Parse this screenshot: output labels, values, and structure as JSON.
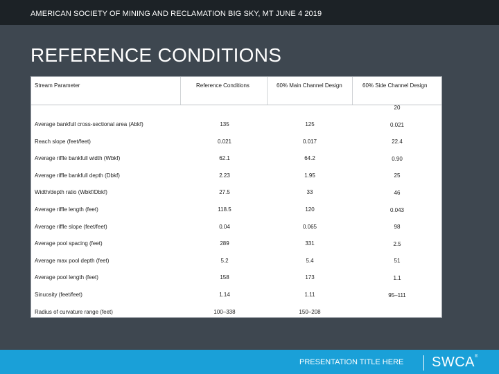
{
  "header": {
    "text": "AMERICAN SOCIETY OF MINING AND RECLAMATION  BIG SKY, MT JUNE 4 2019"
  },
  "title": "REFERENCE CONDITIONS",
  "table": {
    "columns": [
      "Stream Parameter",
      "Reference Conditions",
      "60% Main Channel Design",
      "60% Side Channel Design"
    ],
    "rows": [
      {
        "param": "Average bankfull cross-sectional area (Abkf)",
        "reference": "135",
        "main": "125",
        "side": "20"
      },
      {
        "param": "Reach slope (feet/feet)",
        "reference": "0.021",
        "main": "0.017",
        "side": "0.021"
      },
      {
        "param": "Average riffle bankfull width (Wbkf)",
        "reference": "62.1",
        "main": "64.2",
        "side": "22.4"
      },
      {
        "param": "Average riffle bankfull depth (Dbkf)",
        "reference": "2.23",
        "main": "1.95",
        "side": "0.90"
      },
      {
        "param": "Width/depth ratio (Wbkf/Dbkf)",
        "reference": "27.5",
        "main": "33",
        "side": "25"
      },
      {
        "param": "Average riffle length (feet)",
        "reference": "118.5",
        "main": "120",
        "side": "46"
      },
      {
        "param": "Average riffle slope (feet/feet)",
        "reference": "0.04",
        "main": "0.065",
        "side": "0.043"
      },
      {
        "param": "Average pool spacing (feet)",
        "reference": "289",
        "main": "331",
        "side": "98"
      },
      {
        "param": "Average max pool depth (feet)",
        "reference": "5.2",
        "main": "5.4",
        "side": "2.5"
      },
      {
        "param": "Average pool length (feet)",
        "reference": "158",
        "main": "173",
        "side": "51"
      },
      {
        "param": "Sinuosity (feet/feet)",
        "reference": "1.14",
        "main": "1.11",
        "side": "1.1"
      },
      {
        "param": "Radius of curvature range (feet)",
        "reference": "100–338",
        "main": "150–208",
        "side": "95–111"
      }
    ]
  },
  "footer": {
    "text": "PRESENTATION TITLE HERE",
    "logo": "SWCA"
  }
}
